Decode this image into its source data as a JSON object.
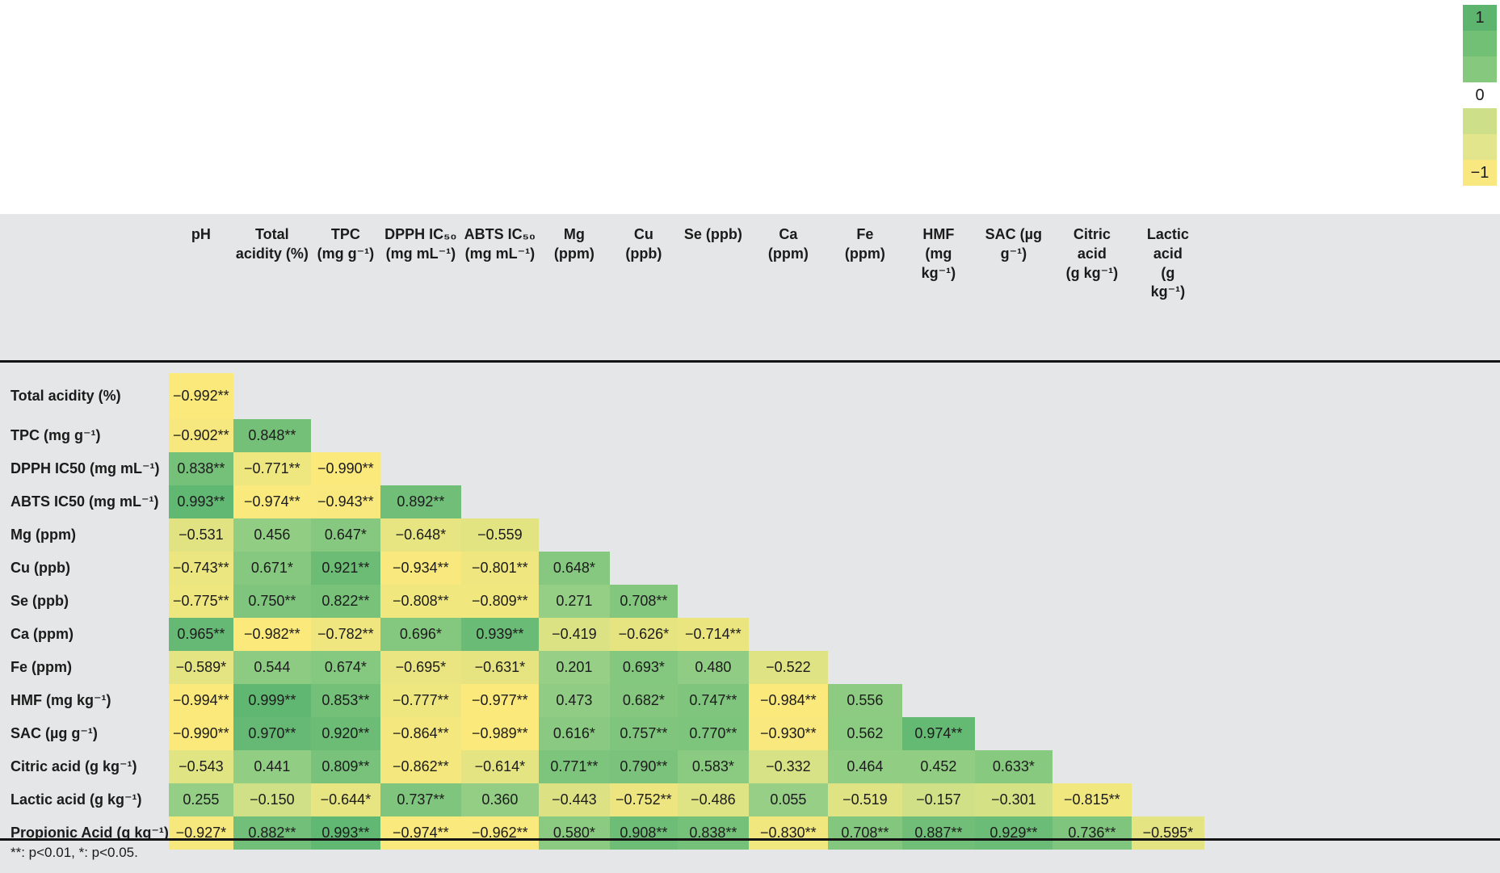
{
  "legend": {
    "max_label": "1",
    "mid_label": "0",
    "min_label": "−1",
    "green_shades": [
      "#5cb46f",
      "#72bf76",
      "#85c87e"
    ],
    "yellow_shades": [
      "#cde089",
      "#e3e58c",
      "#f9e880"
    ]
  },
  "footnote": "**: p<0.01, *: p<0.05.",
  "chart_data": {
    "type": "heatmap",
    "value_range": [
      -1,
      1
    ],
    "legend_ticks": [
      "1",
      "0",
      "−1"
    ],
    "colormap": {
      "positive_one": "#60b772",
      "positive_zero": "#96cf85",
      "negative_zero": "#cbdf88",
      "negative_one": "#fce97c",
      "background": "#e5e6e7"
    },
    "columns": [
      "pH",
      "Total\nacidity (%)",
      "TPC\n(mg g⁻¹)",
      "DPPH IC₅₀\n(mg mL⁻¹)",
      "ABTS IC₅₀\n(mg mL⁻¹)",
      "Mg\n(ppm)",
      "Cu\n(ppb)",
      "Se (ppb)",
      "Ca\n(ppm)",
      "Fe\n(ppm)",
      "HMF\n(mg\nkg⁻¹)",
      "SAC (µg\ng⁻¹)",
      "Citric\nacid\n(g kg⁻¹)",
      "Lactic\nacid\n(g\nkg⁻¹)"
    ],
    "rows": [
      {
        "label": "Total acidity (%)",
        "values": [
          "−0.992**"
        ]
      },
      {
        "label": "TPC (mg g⁻¹)",
        "values": [
          "−0.902**",
          "0.848**"
        ]
      },
      {
        "label": "DPPH IC50 (mg mL⁻¹)",
        "values": [
          "0.838**",
          "−0.771**",
          "−0.990**"
        ]
      },
      {
        "label": "ABTS IC50 (mg mL⁻¹)",
        "values": [
          "0.993**",
          "−0.974**",
          "−0.943**",
          "0.892**"
        ]
      },
      {
        "label": "Mg (ppm)",
        "values": [
          "−0.531",
          "0.456",
          "0.647*",
          "−0.648*",
          "−0.559"
        ]
      },
      {
        "label": "Cu (ppb)",
        "values": [
          "−0.743**",
          "0.671*",
          "0.921**",
          "−0.934**",
          "−0.801**",
          "0.648*"
        ]
      },
      {
        "label": "Se (ppb)",
        "values": [
          "−0.775**",
          "0.750**",
          "0.822**",
          "−0.808**",
          "−0.809**",
          "0.271",
          "0.708**"
        ]
      },
      {
        "label": "Ca (ppm)",
        "values": [
          "0.965**",
          "−0.982**",
          "−0.782**",
          "0.696*",
          "0.939**",
          "−0.419",
          "−0.626*",
          "−0.714**"
        ]
      },
      {
        "label": "Fe (ppm)",
        "values": [
          "−0.589*",
          "0.544",
          "0.674*",
          "−0.695*",
          "−0.631*",
          "0.201",
          "0.693*",
          "0.480",
          "−0.522"
        ]
      },
      {
        "label": "HMF (mg kg⁻¹)",
        "values": [
          "−0.994**",
          "0.999**",
          "0.853**",
          "−0.777**",
          "−0.977**",
          "0.473",
          "0.682*",
          "0.747**",
          "−0.984**",
          "0.556"
        ]
      },
      {
        "label": "SAC (µg g⁻¹)",
        "values": [
          "−0.990**",
          "0.970**",
          "0.920**",
          "−0.864**",
          "−0.989**",
          "0.616*",
          "0.757**",
          "0.770**",
          "−0.930**",
          "0.562",
          "0.974**"
        ]
      },
      {
        "label": "Citric acid (g kg⁻¹)",
        "values": [
          "−0.543",
          "0.441",
          "0.809**",
          "−0.862**",
          "−0.614*",
          "0.771**",
          "0.790**",
          "0.583*",
          "−0.332",
          "0.464",
          "0.452",
          "0.633*"
        ]
      },
      {
        "label": "Lactic acid (g kg⁻¹)",
        "values": [
          "0.255",
          "−0.150",
          "−0.644*",
          "0.737**",
          "0.360",
          "−0.443",
          "−0.752**",
          "−0.486",
          "0.055",
          "−0.519",
          "−0.157",
          "−0.301",
          "−0.815**"
        ]
      },
      {
        "label": "Propionic Acid (g kg⁻¹)",
        "values": [
          "−0.927*",
          "0.882**",
          "0.993**",
          "−0.974**",
          "−0.962**",
          "0.580*",
          "0.908**",
          "0.838**",
          "−0.830**",
          "0.708**",
          "0.887**",
          "0.929**",
          "0.736**",
          "−0.595*"
        ]
      }
    ]
  }
}
